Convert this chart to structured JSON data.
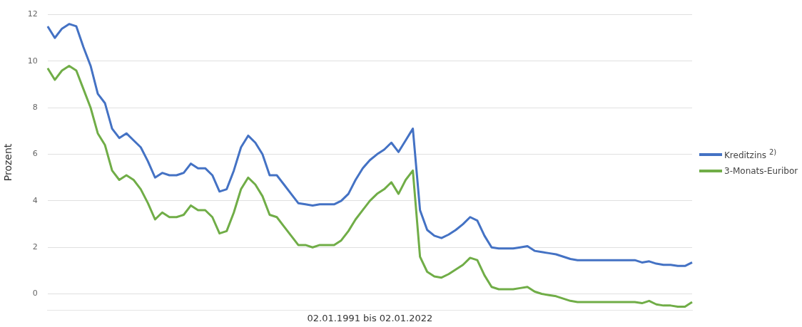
{
  "chart_data": {
    "type": "line",
    "xlabel": "02.01.1991 bis 02.01.2022",
    "ylabel": "Prozent",
    "categories": [
      null,
      null,
      null,
      null,
      null,
      null,
      null,
      null,
      null,
      null,
      null,
      null,
      null,
      null,
      null,
      null,
      null,
      null,
      null,
      null,
      null,
      null,
      null,
      null,
      null,
      null,
      null,
      null,
      null,
      null,
      null,
      null,
      null,
      null,
      null,
      null,
      null,
      null,
      null,
      null,
      null,
      null,
      null,
      null,
      null,
      null,
      null,
      null,
      null,
      null,
      null,
      null,
      null,
      null,
      null,
      null,
      null,
      null,
      null,
      null,
      null,
      null,
      null,
      null,
      null,
      null,
      null,
      null,
      null,
      null,
      null,
      null,
      null,
      null,
      null,
      null,
      null,
      null,
      null,
      null,
      null,
      null,
      null,
      null,
      null,
      null,
      null,
      null,
      null,
      null,
      null
    ],
    "series": [
      {
        "name": "Kreditzins $^{2)}$",
        "color": "#4472c4",
        "values": [
          11.5,
          11.0,
          11.4,
          11.6,
          11.5,
          10.6,
          9.8,
          8.6,
          8.2,
          7.1,
          6.7,
          6.9,
          6.6,
          6.3,
          5.7,
          5.0,
          5.2,
          5.1,
          5.1,
          5.2,
          5.6,
          5.4,
          5.4,
          5.1,
          4.4,
          4.5,
          5.3,
          6.3,
          6.8,
          6.5,
          6.0,
          5.1,
          5.1,
          4.7,
          4.3,
          3.9,
          3.85,
          3.8,
          3.85,
          3.85,
          3.85,
          4.0,
          4.3,
          4.9,
          5.4,
          5.75,
          6.0,
          6.2,
          6.5,
          6.1,
          6.6,
          7.1,
          3.6,
          2.75,
          2.5,
          2.4,
          2.55,
          2.75,
          3.0,
          3.3,
          3.15,
          2.5,
          2.0,
          1.95,
          1.95,
          1.95,
          2.0,
          2.05,
          1.85,
          1.8,
          1.75,
          1.7,
          1.6,
          1.5,
          1.45,
          1.45,
          1.45,
          1.45,
          1.45,
          1.45,
          1.45,
          1.45,
          1.45,
          1.35,
          1.4,
          1.3,
          1.25,
          1.25,
          1.2,
          1.2,
          1.35
        ]
      },
      {
        "name": "3-Monats-Euribor",
        "color": "#70ad47",
        "values": [
          9.7,
          9.2,
          9.6,
          9.8,
          9.6,
          8.8,
          8.0,
          6.9,
          6.4,
          5.3,
          4.9,
          5.1,
          4.9,
          4.5,
          3.9,
          3.2,
          3.5,
          3.3,
          3.3,
          3.4,
          3.8,
          3.6,
          3.6,
          3.3,
          2.6,
          2.7,
          3.5,
          4.5,
          5.0,
          4.7,
          4.2,
          3.4,
          3.3,
          2.9,
          2.5,
          2.1,
          2.1,
          2.0,
          2.1,
          2.1,
          2.1,
          2.3,
          2.7,
          3.2,
          3.6,
          4.0,
          4.3,
          4.5,
          4.8,
          4.3,
          4.9,
          5.3,
          1.6,
          0.95,
          0.75,
          0.7,
          0.85,
          1.05,
          1.25,
          1.55,
          1.45,
          0.8,
          0.3,
          0.2,
          0.2,
          0.2,
          0.25,
          0.3,
          0.1,
          0.0,
          -0.05,
          -0.1,
          -0.2,
          -0.3,
          -0.35,
          -0.35,
          -0.35,
          -0.35,
          -0.35,
          -0.35,
          -0.35,
          -0.35,
          -0.35,
          -0.4,
          -0.3,
          -0.45,
          -0.5,
          -0.5,
          -0.55,
          -0.55,
          -0.35
        ]
      }
    ],
    "ylim": [
      -0.7,
      12
    ],
    "yticks": [
      0,
      2,
      4,
      6,
      8,
      10,
      12
    ],
    "grid": "y",
    "legend": "right",
    "marker": "none",
    "line_style": "solid"
  }
}
